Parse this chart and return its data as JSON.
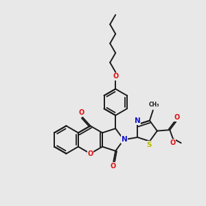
{
  "bg_color": "#e8e8e8",
  "bond_color": "#1a1a1a",
  "lw": 1.4,
  "dbo": 0.06,
  "atom_colors": {
    "O": "#dd1111",
    "N": "#1111cc",
    "S": "#bbbb00",
    "C": "#1a1a1a"
  },
  "fs": 7.0,
  "bl": 0.68
}
